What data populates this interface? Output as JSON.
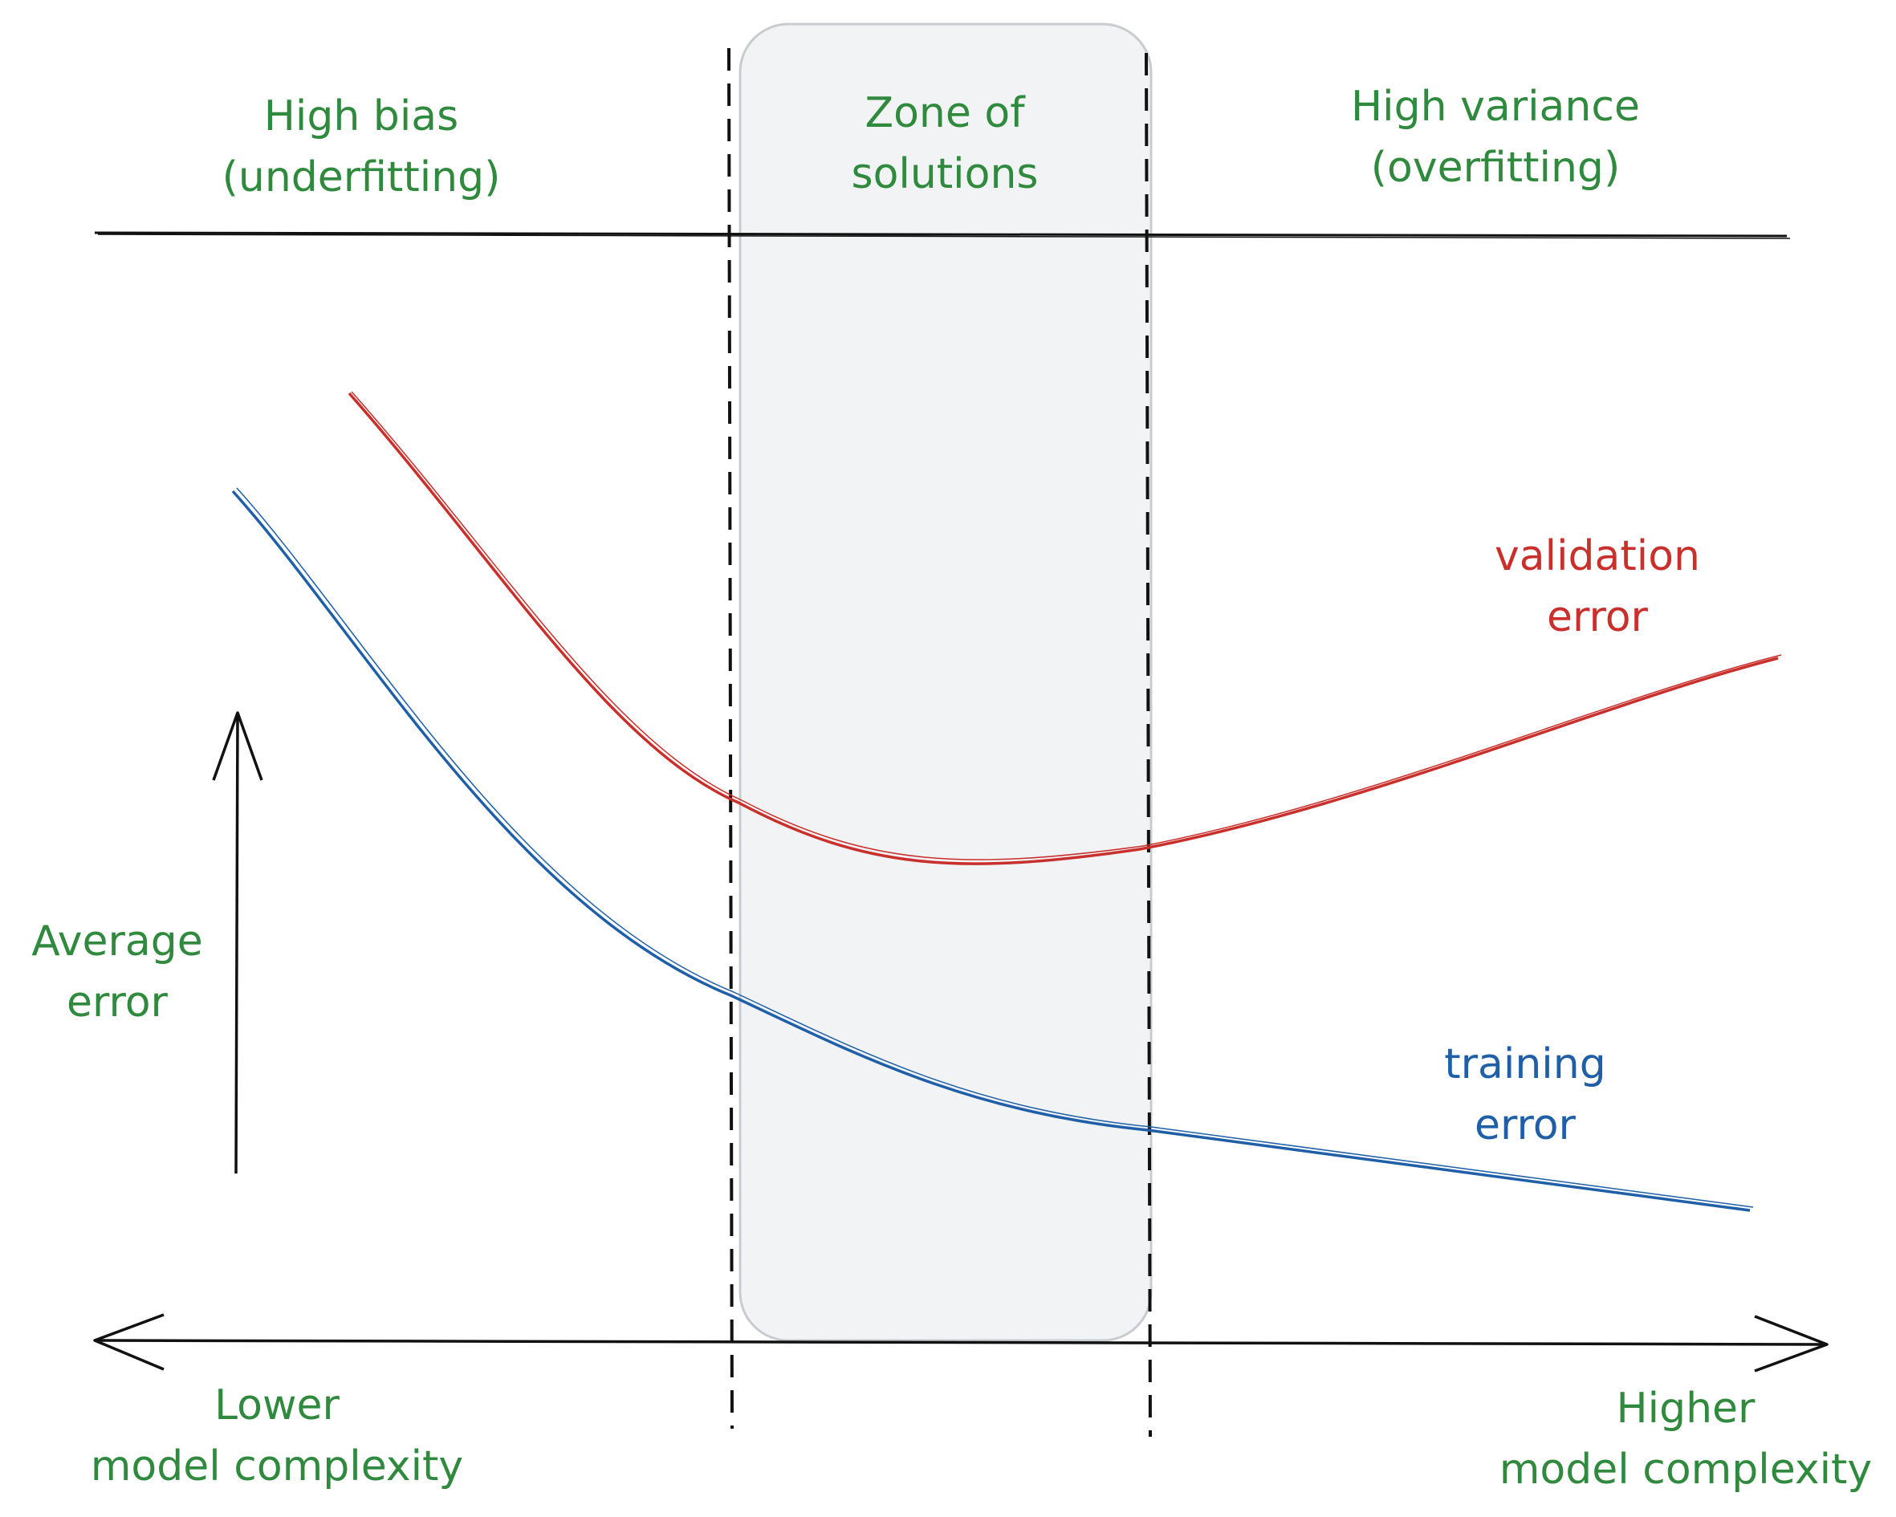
{
  "regions": {
    "left": {
      "line1": "High bias",
      "line2": "(underfitting)"
    },
    "middle": {
      "line1": "Zone of",
      "line2": "solutions"
    },
    "right": {
      "line1": "High variance",
      "line2": "(overfitting)"
    }
  },
  "y_axis_label": {
    "line1": "Average",
    "line2": "error"
  },
  "x_axis_ends": {
    "left": {
      "line1": "Lower",
      "line2": "model complexity"
    },
    "right": {
      "line1": "Higher",
      "line2": "model complexity"
    }
  },
  "curves": {
    "validation": {
      "line1": "validation",
      "line2": "error",
      "color": "#c9302c"
    },
    "training": {
      "line1": "training",
      "line2": "error",
      "color": "#1e5fa8"
    }
  },
  "colors": {
    "label_green": "#2f8a3e",
    "zone_fill": "#f1f3f5",
    "zone_stroke": "#c8ccd0"
  }
}
